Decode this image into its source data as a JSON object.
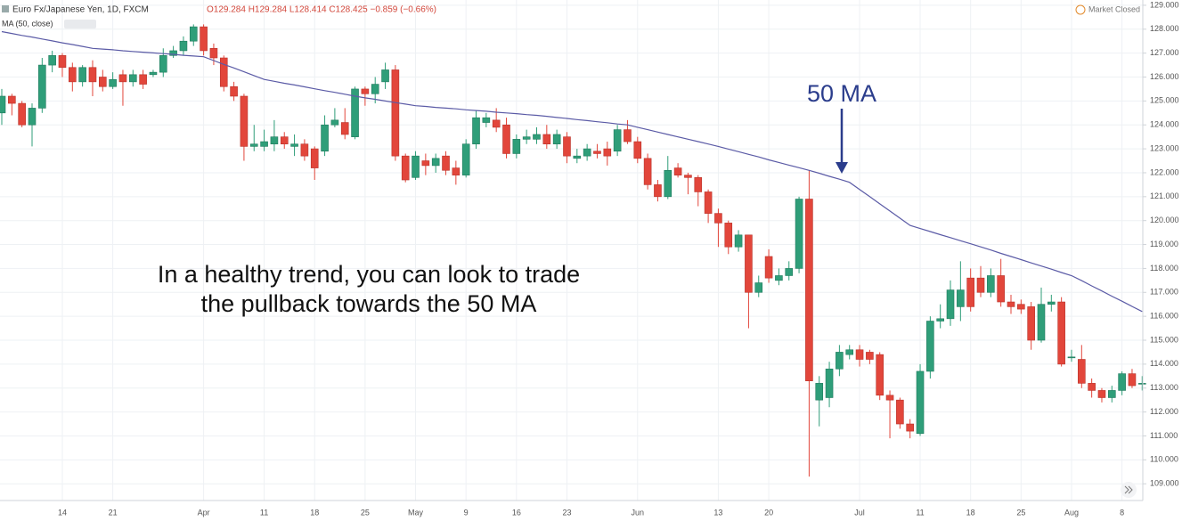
{
  "chart_data": {
    "type": "candlestick",
    "title": "Euro Fx/Japanese Yen, 1D, FXCM",
    "ohlc_text": "O129.284 H129.284 L128.414 C128.425 −0.859 (−0.66%)",
    "indicator_label": "MA (50, close)",
    "status": "Market Closed",
    "annotation": "50 MA",
    "caption": [
      "In a healthy trend, you can look to trade",
      "the pullback towards the 50 MA"
    ],
    "up_color": "#2f9e79",
    "down_color": "#e2463b",
    "ma_color": "#5b5ba6",
    "grid": true,
    "ylim": [
      108.3,
      129.22
    ],
    "yticks": [
      {
        "value": 109,
        "label": "109.000"
      },
      {
        "value": 110,
        "label": "110.000"
      },
      {
        "value": 111,
        "label": "111.000"
      },
      {
        "value": 112,
        "label": "112.000"
      },
      {
        "value": 113,
        "label": "113.000"
      },
      {
        "value": 114,
        "label": "114.000"
      },
      {
        "value": 115,
        "label": "115.000"
      },
      {
        "value": 116,
        "label": "116.000"
      },
      {
        "value": 117,
        "label": "117.000"
      },
      {
        "value": 118,
        "label": "118.000"
      },
      {
        "value": 119,
        "label": "119.000"
      },
      {
        "value": 120,
        "label": "120.000"
      },
      {
        "value": 121,
        "label": "121.000"
      },
      {
        "value": 122,
        "label": "122.000"
      },
      {
        "value": 123,
        "label": "123.000"
      },
      {
        "value": 124,
        "label": "124.000"
      },
      {
        "value": 125,
        "label": "125.000"
      },
      {
        "value": 126,
        "label": "126.000"
      },
      {
        "value": 127,
        "label": "127.000"
      },
      {
        "value": 128,
        "label": "128.000"
      },
      {
        "value": 129,
        "label": "129.000"
      }
    ],
    "categories": [
      null,
      null,
      null,
      null,
      null,
      null,
      "14",
      null,
      null,
      null,
      null,
      "21",
      null,
      null,
      null,
      null,
      null,
      null,
      null,
      null,
      "Apr",
      null,
      null,
      null,
      null,
      null,
      "11",
      null,
      null,
      null,
      null,
      "18",
      null,
      null,
      null,
      null,
      "25",
      null,
      null,
      null,
      null,
      "May",
      null,
      null,
      null,
      null,
      "9",
      null,
      null,
      null,
      null,
      "16",
      null,
      null,
      null,
      null,
      "23",
      null,
      null,
      null,
      null,
      null,
      null,
      "Jun",
      null,
      null,
      null,
      null,
      null,
      null,
      null,
      "13",
      null,
      null,
      null,
      null,
      "20",
      null,
      null,
      null,
      null,
      null,
      null,
      null,
      null,
      "Jul",
      null,
      null,
      null,
      null,
      null,
      "11",
      null,
      null,
      null,
      null,
      "18",
      null,
      null,
      null,
      null,
      "25",
      null,
      null,
      null,
      null,
      "Aug",
      null,
      null,
      null,
      null,
      "8",
      null,
      null
    ],
    "open": [
      124.5,
      125.2,
      124.9,
      124.0,
      124.7,
      126.5,
      126.9,
      126.4,
      125.8,
      126.4,
      126.0,
      125.6,
      126.1,
      125.8,
      126.1,
      126.1,
      126.2,
      126.9,
      127.1,
      127.5,
      128.1,
      127.2,
      126.8,
      125.6,
      125.2,
      123.1,
      123.1,
      123.2,
      123.5,
      123.1,
      123.2,
      123.0,
      122.9,
      124.0,
      124.1,
      123.5,
      125.5,
      125.3,
      125.8,
      126.3,
      122.7,
      121.8,
      122.5,
      122.3,
      122.7,
      122.2,
      121.9,
      123.2,
      124.1,
      124.2,
      124.0,
      122.8,
      123.4,
      123.4,
      123.6,
      123.2,
      123.5,
      122.6,
      122.7,
      122.9,
      123.0,
      122.9,
      123.8,
      123.3,
      122.6,
      121.5,
      121.0,
      122.2,
      121.9,
      121.8,
      121.2,
      120.3,
      119.9,
      118.9,
      119.4,
      117.0,
      118.5,
      117.5,
      117.7,
      118.0,
      120.9,
      112.5,
      112.6,
      113.8,
      114.4,
      114.6,
      114.5,
      114.4,
      112.7,
      112.5,
      111.5,
      111.1,
      113.7,
      115.8,
      115.9,
      116.4,
      117.6,
      117.6,
      117.0,
      117.7,
      116.6,
      116.5,
      116.4,
      115.0,
      116.5,
      116.6,
      114.3,
      114.2,
      113.2,
      112.9,
      112.6,
      112.9,
      113.6,
      113.2
    ],
    "high": [
      125.5,
      125.3,
      125.0,
      124.9,
      126.8,
      127.1,
      127.0,
      126.6,
      126.5,
      126.7,
      126.3,
      126.2,
      126.3,
      126.3,
      126.3,
      126.3,
      127.2,
      127.3,
      127.7,
      128.2,
      128.2,
      127.4,
      126.9,
      125.8,
      125.3,
      124.0,
      123.8,
      124.2,
      123.7,
      123.6,
      123.4,
      123.1,
      124.4,
      124.7,
      124.7,
      125.6,
      125.6,
      126.0,
      126.6,
      126.5,
      122.8,
      122.9,
      122.8,
      122.8,
      122.9,
      122.5,
      123.4,
      124.6,
      124.5,
      124.7,
      124.3,
      123.6,
      123.8,
      123.9,
      124.0,
      123.8,
      123.7,
      123.0,
      123.2,
      123.2,
      123.3,
      124.0,
      124.2,
      123.5,
      122.8,
      121.7,
      122.7,
      122.4,
      122.0,
      121.9,
      121.3,
      120.5,
      120.0,
      119.6,
      119.4,
      117.7,
      118.8,
      118.0,
      118.3,
      121.0,
      122.1,
      113.5,
      114.1,
      114.8,
      114.8,
      114.8,
      114.6,
      114.5,
      112.9,
      112.6,
      111.7,
      114.0,
      116.0,
      116.5,
      117.5,
      118.3,
      118.0,
      118.1,
      118.0,
      118.4,
      116.9,
      116.7,
      116.6,
      117.2,
      116.9,
      116.8,
      114.6,
      114.8,
      113.4,
      113.0,
      113.1,
      113.7,
      113.8,
      113.5
    ],
    "low": [
      124.0,
      124.4,
      123.9,
      123.1,
      124.5,
      126.2,
      126.0,
      125.4,
      125.6,
      125.2,
      125.4,
      125.5,
      124.8,
      125.6,
      125.5,
      126.0,
      126.0,
      126.8,
      126.9,
      127.3,
      126.9,
      126.5,
      125.4,
      125.0,
      122.5,
      122.9,
      122.9,
      122.9,
      123.0,
      122.7,
      122.5,
      121.7,
      122.7,
      123.9,
      123.4,
      123.4,
      124.8,
      124.9,
      125.5,
      122.5,
      121.6,
      121.7,
      121.9,
      122.0,
      121.9,
      121.5,
      121.8,
      123.0,
      123.9,
      123.7,
      122.6,
      122.6,
      123.2,
      123.2,
      123.0,
      123.0,
      122.4,
      122.4,
      122.5,
      122.6,
      122.3,
      122.7,
      123.2,
      122.4,
      121.3,
      120.8,
      120.9,
      121.8,
      121.1,
      120.6,
      119.9,
      118.9,
      118.6,
      118.7,
      115.5,
      116.8,
      117.4,
      117.3,
      117.5,
      117.8,
      109.3,
      111.4,
      112.2,
      113.5,
      114.2,
      113.9,
      114.0,
      112.5,
      110.9,
      111.3,
      110.9,
      111.0,
      113.4,
      115.5,
      115.6,
      115.8,
      116.2,
      116.8,
      116.8,
      116.4,
      116.1,
      116.1,
      114.6,
      114.9,
      116.2,
      113.9,
      114.1,
      113.0,
      112.6,
      112.4,
      112.4,
      112.7,
      113.0,
      112.9
    ],
    "close": [
      125.2,
      124.9,
      124.0,
      124.7,
      126.5,
      126.9,
      126.4,
      125.8,
      126.4,
      125.8,
      125.6,
      125.9,
      125.8,
      126.1,
      125.7,
      126.2,
      126.9,
      127.1,
      127.5,
      128.1,
      127.1,
      126.8,
      125.6,
      125.2,
      123.1,
      123.2,
      123.3,
      123.5,
      123.2,
      123.2,
      122.7,
      122.2,
      124.0,
      124.2,
      123.6,
      125.5,
      125.3,
      125.7,
      126.3,
      122.7,
      121.7,
      122.7,
      122.3,
      122.6,
      122.1,
      121.9,
      123.2,
      124.3,
      124.3,
      123.9,
      122.8,
      123.4,
      123.5,
      123.6,
      123.2,
      123.6,
      122.7,
      122.7,
      123.0,
      122.8,
      122.7,
      123.8,
      123.3,
      122.6,
      121.5,
      121.0,
      122.1,
      121.9,
      121.8,
      121.2,
      120.3,
      119.9,
      118.9,
      119.4,
      117.0,
      117.4,
      117.6,
      117.7,
      118.0,
      120.9,
      113.3,
      113.2,
      113.8,
      114.5,
      114.6,
      114.2,
      114.2,
      112.7,
      112.5,
      111.5,
      111.2,
      113.7,
      115.8,
      115.9,
      117.1,
      117.1,
      116.4,
      117.0,
      117.7,
      116.6,
      116.4,
      116.3,
      115.0,
      116.5,
      116.6,
      114.0,
      114.3,
      113.2,
      112.9,
      112.6,
      112.9,
      113.6,
      113.1,
      113.2
    ],
    "ma": [
      127.9,
      127.82,
      127.74,
      127.67,
      127.59,
      127.51,
      127.43,
      127.36,
      127.28,
      127.2,
      127.17,
      127.14,
      127.1,
      127.07,
      127.04,
      127.01,
      126.98,
      126.95,
      126.91,
      126.88,
      126.85,
      126.69,
      126.53,
      126.38,
      126.22,
      126.06,
      125.9,
      125.82,
      125.74,
      125.67,
      125.59,
      125.51,
      125.43,
      125.36,
      125.28,
      125.2,
      125.13,
      125.07,
      125.0,
      124.93,
      124.87,
      124.8,
      124.77,
      124.73,
      124.7,
      124.67,
      124.63,
      124.6,
      124.57,
      124.53,
      124.5,
      124.47,
      124.43,
      124.4,
      124.36,
      124.31,
      124.27,
      124.22,
      124.18,
      124.13,
      124.09,
      124.04,
      124.0,
      123.9,
      123.8,
      123.7,
      123.6,
      123.5,
      123.4,
      123.3,
      123.2,
      123.1,
      122.99,
      122.88,
      122.77,
      122.66,
      122.54,
      122.43,
      122.32,
      122.21,
      122.1,
      121.98,
      121.85,
      121.73,
      121.6,
      121.3,
      121.0,
      120.7,
      120.4,
      120.1,
      119.8,
      119.67,
      119.54,
      119.41,
      119.29,
      119.16,
      119.03,
      118.9,
      118.77,
      118.63,
      118.5,
      118.37,
      118.23,
      118.1,
      117.97,
      117.83,
      117.7,
      117.49,
      117.27,
      117.06,
      116.84,
      116.63,
      116.41,
      116.2
    ]
  }
}
